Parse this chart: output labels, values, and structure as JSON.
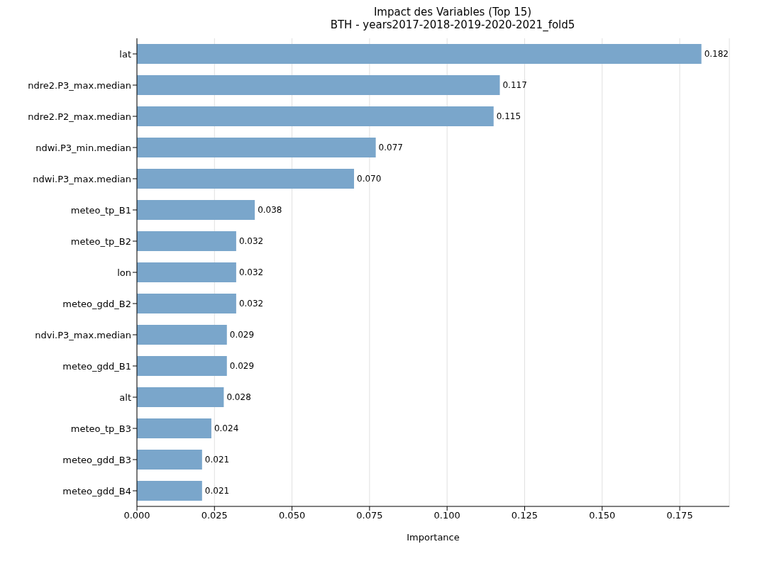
{
  "chart_data": {
    "type": "bar",
    "orientation": "horizontal",
    "title": "Impact des Variables (Top 15)",
    "subtitle": "BTH - years2017-2018-2019-2020-2021_fold5",
    "xlabel": "Importance",
    "categories": [
      "lat",
      "ndre2.P3_max.median",
      "ndre2.P2_max.median",
      "ndwi.P3_min.median",
      "ndwi.P3_max.median",
      "meteo_tp_B1",
      "meteo_tp_B2",
      "lon",
      "meteo_gdd_B2",
      "ndvi.P3_max.median",
      "meteo_gdd_B1",
      "alt",
      "meteo_tp_B3",
      "meteo_gdd_B3",
      "meteo_gdd_B4"
    ],
    "values": [
      0.182,
      0.117,
      0.115,
      0.077,
      0.07,
      0.038,
      0.032,
      0.032,
      0.032,
      0.029,
      0.029,
      0.028,
      0.024,
      0.021,
      0.021
    ],
    "value_labels": [
      "0.182",
      "0.117",
      "0.115",
      "0.077",
      "0.070",
      "0.038",
      "0.032",
      "0.032",
      "0.032",
      "0.029",
      "0.029",
      "0.028",
      "0.024",
      "0.021",
      "0.021"
    ],
    "color": "#7aa6cb",
    "xlim": [
      0,
      0.191
    ],
    "xticks": [
      {
        "value": 0,
        "label": "0.000"
      },
      {
        "value": 0.025,
        "label": "0.025"
      },
      {
        "value": 0.05,
        "label": "0.050"
      },
      {
        "value": 0.075,
        "label": "0.075"
      },
      {
        "value": 0.1,
        "label": "0.100"
      },
      {
        "value": 0.125,
        "label": "0.125"
      },
      {
        "value": 0.15,
        "label": "0.150"
      },
      {
        "value": 0.175,
        "label": "0.175"
      }
    ],
    "grid": "x"
  }
}
